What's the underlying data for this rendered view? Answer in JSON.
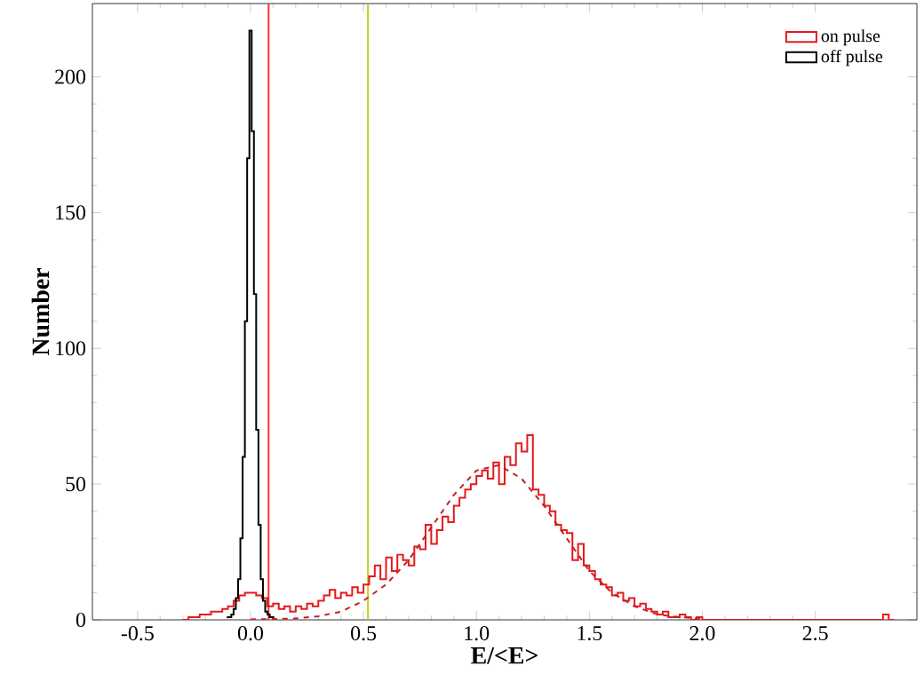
{
  "chart_data": {
    "type": "histogram",
    "xlabel": "E/<E>",
    "ylabel": "Number",
    "xlim": [
      -0.7,
      2.95
    ],
    "ylim": [
      0,
      227
    ],
    "xticks": [
      -0.5,
      {
        "value": 0,
        "label": "0.0"
      },
      0.5,
      {
        "value": 1,
        "label": "1.0"
      },
      1.5,
      {
        "value": 2,
        "label": "2.0"
      },
      2.5
    ],
    "yticks": [
      0,
      50,
      100,
      150,
      200
    ],
    "legend": "top right",
    "grid": false,
    "series": [
      {
        "name": "on pulse",
        "color": "#e41a1c",
        "bins": [
          -0.3,
          -0.275,
          -0.25,
          -0.225,
          -0.2,
          -0.175,
          -0.15,
          -0.125,
          -0.1,
          -0.075,
          -0.05,
          -0.025,
          0,
          0.025,
          0.05,
          0.075,
          0.1,
          0.125,
          0.15,
          0.175,
          0.2,
          0.225,
          0.25,
          0.275,
          0.3,
          0.325,
          0.35,
          0.375,
          0.4,
          0.425,
          0.45,
          0.475,
          0.5,
          0.525,
          0.55,
          0.575,
          0.6,
          0.625,
          0.65,
          0.675,
          0.7,
          0.725,
          0.75,
          0.775,
          0.8,
          0.825,
          0.85,
          0.875,
          0.9,
          0.925,
          0.95,
          0.975,
          1.0,
          1.025,
          1.05,
          1.075,
          1.1,
          1.125,
          1.15,
          1.175,
          1.2,
          1.225,
          1.25,
          1.275,
          1.3,
          1.325,
          1.35,
          1.375,
          1.4,
          1.425,
          1.45,
          1.475,
          1.5,
          1.525,
          1.55,
          1.575,
          1.6,
          1.625,
          1.65,
          1.675,
          1.7,
          1.725,
          1.75,
          1.775,
          1.8,
          1.825,
          1.85,
          1.875,
          1.9,
          1.925,
          1.95,
          1.975,
          2.0,
          2.025,
          2.05,
          2.075,
          2.1,
          2.125,
          2.15,
          2.175,
          2.2,
          2.225,
          2.25,
          2.275,
          2.3,
          2.325,
          2.35,
          2.375,
          2.4,
          2.425,
          2.45,
          2.475,
          2.5,
          2.525,
          2.55,
          2.575,
          2.6,
          2.625,
          2.65,
          2.675,
          2.7,
          2.725,
          2.75,
          2.775,
          2.8,
          2.825,
          2.85
        ],
        "values": [
          0,
          1,
          1,
          2,
          2,
          3,
          3,
          4,
          5,
          7,
          9,
          10,
          10,
          9,
          8,
          5,
          6,
          4,
          5,
          3,
          5,
          4,
          6,
          5,
          7,
          9,
          11,
          8,
          10,
          9,
          12,
          10,
          13,
          16,
          20,
          15,
          23,
          18,
          24,
          22,
          20,
          27,
          26,
          35,
          28,
          33,
          38,
          36,
          42,
          45,
          48,
          50,
          53,
          55,
          52,
          58,
          50,
          60,
          57,
          65,
          62,
          68,
          48,
          46,
          42,
          40,
          35,
          33,
          32,
          22,
          28,
          20,
          18,
          15,
          13,
          12,
          9,
          10,
          7,
          8,
          5,
          6,
          4,
          3,
          2,
          3,
          1,
          1,
          2,
          1,
          0,
          1,
          0,
          0,
          0,
          0,
          0,
          0,
          0,
          0,
          0,
          0,
          0,
          0,
          0,
          0,
          0,
          0,
          0,
          0,
          0,
          0,
          0,
          0,
          0,
          0,
          0,
          0,
          0,
          0,
          0,
          0,
          0,
          0,
          2,
          0
        ]
      },
      {
        "name": "off pulse",
        "color": "#000000",
        "bins": [
          -0.105,
          -0.095,
          -0.085,
          -0.075,
          -0.065,
          -0.055,
          -0.045,
          -0.035,
          -0.025,
          -0.015,
          -0.005,
          0.005,
          0.015,
          0.025,
          0.035,
          0.045,
          0.055,
          0.065,
          0.075,
          0.085,
          0.095,
          0.105
        ],
        "values": [
          1,
          1,
          2,
          4,
          8,
          15,
          30,
          60,
          110,
          170,
          217,
          180,
          120,
          70,
          35,
          15,
          7,
          3,
          2,
          1,
          1
        ]
      },
      {
        "type": "line",
        "color": "#c81e1e",
        "line_style": "dashed",
        "x": [
          0.0,
          0.1,
          0.2,
          0.3,
          0.4,
          0.5,
          0.6,
          0.7,
          0.8,
          0.9,
          1.0,
          1.1,
          1.2,
          1.3,
          1.4,
          1.5,
          1.6,
          1.7,
          1.8,
          1.9,
          2.0
        ],
        "values": [
          0.2,
          0.3,
          0.5,
          1.3,
          3,
          7,
          13,
          22,
          34,
          46,
          55,
          57,
          52,
          42,
          30,
          18,
          10,
          5,
          2,
          1,
          0.3
        ]
      }
    ],
    "ref_lines": [
      {
        "axis": "x",
        "value": 0.08,
        "color": "#ff3030"
      },
      {
        "axis": "x",
        "value": 0.52,
        "color": "#c8c81e"
      }
    ]
  }
}
